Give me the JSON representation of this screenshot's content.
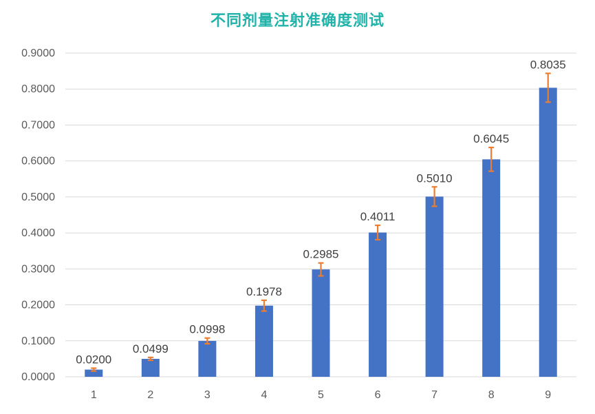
{
  "chart_data": {
    "type": "bar",
    "title": "不同剂量注射准确度测试",
    "xlabel": "",
    "ylabel": "",
    "categories": [
      "1",
      "2",
      "3",
      "4",
      "5",
      "6",
      "7",
      "8",
      "9"
    ],
    "values": [
      0.02,
      0.0499,
      0.0998,
      0.1978,
      0.2985,
      0.4011,
      0.501,
      0.6045,
      0.8035
    ],
    "value_labels": [
      "0.0200",
      "0.0499",
      "0.0998",
      "0.1978",
      "0.2985",
      "0.4011",
      "0.5010",
      "0.6045",
      "0.8035"
    ],
    "error": [
      0.004,
      0.004,
      0.008,
      0.015,
      0.018,
      0.02,
      0.027,
      0.033,
      0.04
    ],
    "ylim": [
      0,
      0.9
    ],
    "yticks": [
      0,
      0.1,
      0.2,
      0.3,
      0.4,
      0.5,
      0.6,
      0.7,
      0.8,
      0.9
    ],
    "ytick_labels": [
      "0.0000",
      "0.1000",
      "0.2000",
      "0.3000",
      "0.4000",
      "0.5000",
      "0.6000",
      "0.7000",
      "0.8000",
      "0.9000"
    ],
    "grid": true,
    "legend": "none",
    "colors": {
      "bar": "#4472c4",
      "error_bar": "#ed7d31",
      "grid": "#d9d9d9",
      "title": "#21b3a9"
    }
  }
}
